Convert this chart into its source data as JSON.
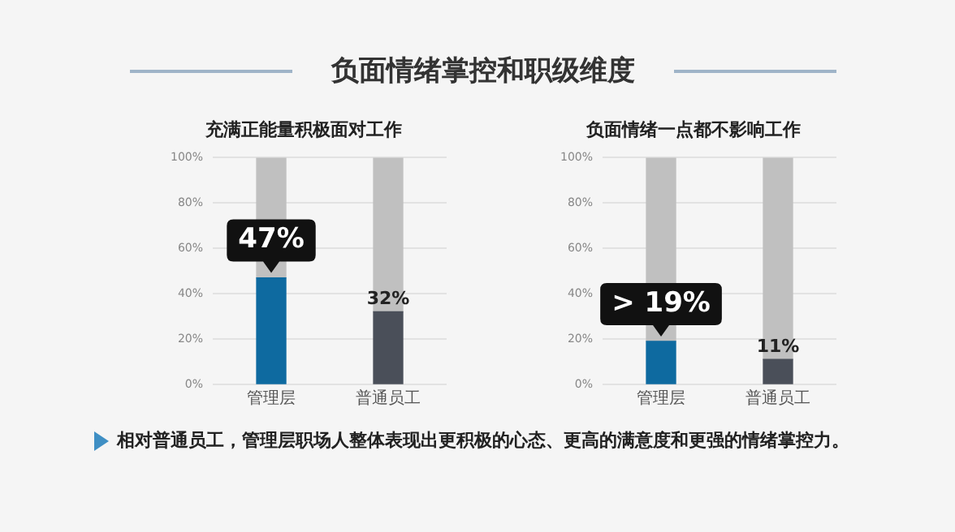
{
  "chart_data": [
    {
      "type": "bar",
      "title": "充满正能量积极面对工作",
      "annotations": [
        "负面情绪掌控和职级维度"
      ],
      "categories": [
        "管理层",
        "普通员工"
      ],
      "stacked": true,
      "series": [
        {
          "colors": [
            "#0e6aa0",
            "#4a4f59"
          ],
          "values": [
            47,
            32
          ],
          "value_labels": [
            "47%",
            "32%"
          ]
        },
        {
          "color": "#c0c0c0",
          "values": [
            53,
            68
          ]
        }
      ],
      "ylim": [
        0,
        100
      ],
      "yticks": [
        {
          "value": 0,
          "label": "0%"
        },
        {
          "value": 20,
          "label": "20%"
        },
        {
          "value": 40,
          "label": "40%"
        },
        {
          "value": 60,
          "label": "60%"
        },
        {
          "value": 80,
          "label": "80%"
        },
        {
          "value": 100,
          "label": "100%"
        }
      ],
      "grid": "y",
      "legend": false
    },
    {
      "type": "bar",
      "title": "负面情绪一点都不影响工作",
      "annotations": [
        "相对普通员工，管理层职场人整体表现出更积极的心态、更高的满意度和更强的情绪掌控力。"
      ],
      "categories": [
        "管理层",
        "普通员工"
      ],
      "stacked": true,
      "series": [
        {
          "colors": [
            "#0e6aa0",
            "#4a4f59"
          ],
          "values": [
            19,
            11
          ],
          "value_labels": [
            "> 19%",
            "11%"
          ]
        },
        {
          "color": "#c0c0c0",
          "values": [
            81,
            89
          ]
        }
      ],
      "ylim": [
        0,
        100
      ],
      "yticks": [
        {
          "value": 0,
          "label": "0%"
        },
        {
          "value": 20,
          "label": "20%"
        },
        {
          "value": 40,
          "label": "40%"
        },
        {
          "value": 60,
          "label": "60%"
        },
        {
          "value": 80,
          "label": "80%"
        },
        {
          "value": 100,
          "label": "100%"
        }
      ],
      "grid": "y",
      "legend": false
    }
  ]
}
